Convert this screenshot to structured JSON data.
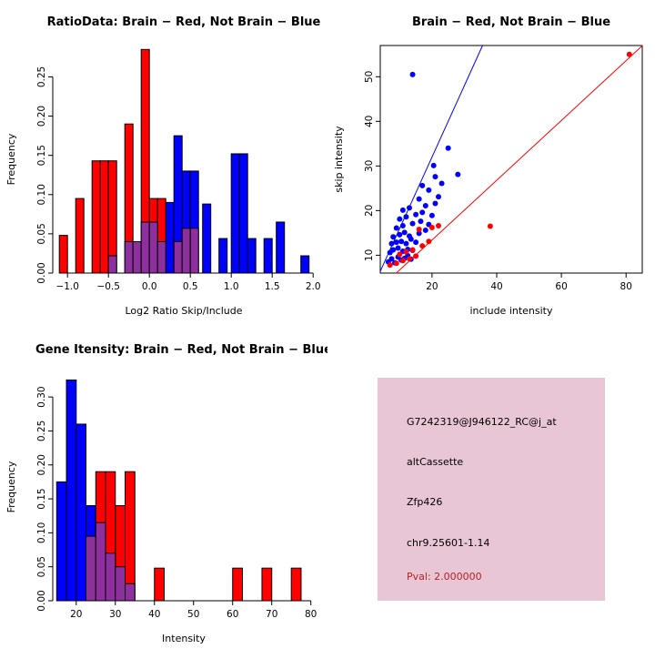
{
  "colors": {
    "red": "#FF0000",
    "blue": "#0000FF",
    "purple": "#8E2F9E",
    "axis": "#000000"
  },
  "chart_data": [
    {
      "type": "histogram",
      "panel": "top-left",
      "title": "RatioData: Brain − Red, Not Brain − Blue",
      "xlabel": "Log2 Ratio Skip/Include",
      "ylabel": "Frequency",
      "xlim": [
        -1.18,
        2.02
      ],
      "ylim": [
        0,
        0.29
      ],
      "xticks": [
        -1.0,
        -0.5,
        0.0,
        0.5,
        1.0,
        1.5,
        2.0
      ],
      "xtick_labels": [
        "−1.0",
        "−0.5",
        "0.0",
        "0.5",
        "1.0",
        "1.5",
        "2.0"
      ],
      "yticks": [
        0,
        0.05,
        0.1,
        0.15,
        0.2,
        0.25
      ],
      "ytick_labels": [
        "0.00",
        "0.05",
        "0.10",
        "0.15",
        "0.20",
        "0.25"
      ],
      "bin_width": 0.1,
      "bars": [
        {
          "x": 0.0,
          "h": 0.065,
          "c": "blue"
        },
        {
          "x": 0.1,
          "h": 0.065,
          "c": "blue"
        },
        {
          "x": 0.2,
          "h": 0.09,
          "c": "blue"
        },
        {
          "x": 0.3,
          "h": 0.175,
          "c": "blue"
        },
        {
          "x": 0.4,
          "h": 0.13,
          "c": "blue"
        },
        {
          "x": 0.5,
          "h": 0.13,
          "c": "blue"
        },
        {
          "x": 0.65,
          "h": 0.088,
          "c": "blue"
        },
        {
          "x": 0.85,
          "h": 0.044,
          "c": "blue"
        },
        {
          "x": 1.0,
          "h": 0.152,
          "c": "blue"
        },
        {
          "x": 1.1,
          "h": 0.152,
          "c": "blue"
        },
        {
          "x": 1.2,
          "h": 0.044,
          "c": "blue"
        },
        {
          "x": 1.4,
          "h": 0.044,
          "c": "blue"
        },
        {
          "x": 1.55,
          "h": 0.065,
          "c": "blue"
        },
        {
          "x": 1.85,
          "h": 0.022,
          "c": "blue"
        },
        {
          "x": -1.1,
          "h": 0.048,
          "c": "red"
        },
        {
          "x": -0.9,
          "h": 0.095,
          "c": "red"
        },
        {
          "x": -0.7,
          "h": 0.143,
          "c": "red"
        },
        {
          "x": -0.6,
          "h": 0.143,
          "c": "red"
        },
        {
          "x": -0.5,
          "h": 0.143,
          "c": "red"
        },
        {
          "x": -0.3,
          "h": 0.19,
          "c": "red"
        },
        {
          "x": -0.1,
          "h": 0.285,
          "c": "red"
        },
        {
          "x": 0.0,
          "h": 0.095,
          "c": "red"
        },
        {
          "x": 0.1,
          "h": 0.095,
          "c": "red"
        },
        {
          "x": -0.5,
          "h": 0.022,
          "c": "purple"
        },
        {
          "x": -0.3,
          "h": 0.04,
          "c": "purple"
        },
        {
          "x": -0.2,
          "h": 0.04,
          "c": "purple"
        },
        {
          "x": -0.1,
          "h": 0.065,
          "c": "purple"
        },
        {
          "x": 0.0,
          "h": 0.065,
          "c": "purple"
        },
        {
          "x": 0.1,
          "h": 0.04,
          "c": "purple"
        },
        {
          "x": 0.3,
          "h": 0.04,
          "c": "purple"
        },
        {
          "x": 0.4,
          "h": 0.057,
          "c": "purple"
        },
        {
          "x": 0.5,
          "h": 0.057,
          "c": "purple"
        }
      ]
    },
    {
      "type": "scatter",
      "panel": "top-right",
      "title": "Brain − Red, Not Brain − Blue",
      "xlabel": "include intensity",
      "ylabel": "skip intensity",
      "xlim": [
        4,
        85
      ],
      "ylim": [
        6,
        57
      ],
      "xticks": [
        20,
        40,
        60,
        80
      ],
      "xtick_labels": [
        "20",
        "40",
        "60",
        "80"
      ],
      "yticks": [
        10,
        20,
        30,
        40,
        50
      ],
      "ytick_labels": [
        "10",
        "20",
        "30",
        "40",
        "50"
      ],
      "series": [
        {
          "name": "Not Brain",
          "color": "blue",
          "points": [
            [
              6.5,
              8.5
            ],
            [
              7.5,
              9.2
            ],
            [
              8.5,
              8.3
            ],
            [
              9.5,
              9.6
            ],
            [
              10.5,
              8.9
            ],
            [
              11.5,
              9.3
            ],
            [
              12.5,
              9.9
            ],
            [
              13.5,
              9.1
            ],
            [
              7,
              10.6
            ],
            [
              8,
              11.2
            ],
            [
              9.5,
              11.6
            ],
            [
              11,
              10.9
            ],
            [
              12.5,
              11.3
            ],
            [
              14,
              11.1
            ],
            [
              7.5,
              12.6
            ],
            [
              9,
              12.9
            ],
            [
              10.5,
              13.1
            ],
            [
              12,
              12.6
            ],
            [
              13.5,
              13.6
            ],
            [
              15,
              12.9
            ],
            [
              8,
              14.1
            ],
            [
              10,
              14.6
            ],
            [
              11.5,
              15.1
            ],
            [
              13,
              14.3
            ],
            [
              16,
              14.9
            ],
            [
              18,
              15.6
            ],
            [
              9,
              16.1
            ],
            [
              11,
              16.6
            ],
            [
              14,
              17.1
            ],
            [
              16.5,
              17.6
            ],
            [
              19,
              16.9
            ],
            [
              10,
              18.1
            ],
            [
              12,
              18.6
            ],
            [
              15,
              19.1
            ],
            [
              17,
              19.6
            ],
            [
              20,
              18.9
            ],
            [
              11,
              20.1
            ],
            [
              13,
              20.6
            ],
            [
              18,
              21.1
            ],
            [
              21,
              21.6
            ],
            [
              16,
              22.6
            ],
            [
              22,
              23.1
            ],
            [
              19,
              24.6
            ],
            [
              17,
              25.6
            ],
            [
              23,
              26.1
            ],
            [
              21,
              27.6
            ],
            [
              28,
              28.1
            ],
            [
              20.5,
              30.1
            ],
            [
              25,
              34
            ],
            [
              14,
              50.5
            ]
          ]
        },
        {
          "name": "Brain",
          "color": "red",
          "points": [
            [
              7,
              7.8
            ],
            [
              9,
              8.2
            ],
            [
              11,
              8.8
            ],
            [
              13,
              9.2
            ],
            [
              15,
              9.8
            ],
            [
              10,
              10.2
            ],
            [
              12,
              10.8
            ],
            [
              14,
              11.2
            ],
            [
              17,
              12.1
            ],
            [
              19,
              13.1
            ],
            [
              16,
              15.8
            ],
            [
              20,
              16.2
            ],
            [
              22,
              16.6
            ],
            [
              38,
              16.5
            ],
            [
              81,
              55
            ]
          ]
        }
      ],
      "lines": [
        {
          "color": "blue",
          "slope": 1.6,
          "intercept": 0
        },
        {
          "color": "red",
          "slope": 0.67,
          "intercept": 0
        }
      ]
    },
    {
      "type": "histogram",
      "panel": "bottom-left",
      "title": "Gene Itensity: Brain − Red, Not Brain − Blue",
      "xlabel": "Intensity",
      "ylabel": "Frequency",
      "xlim": [
        14,
        81
      ],
      "ylim": [
        0,
        0.335
      ],
      "xticks": [
        20,
        30,
        40,
        50,
        60,
        70,
        80
      ],
      "xtick_labels": [
        "20",
        "30",
        "40",
        "50",
        "60",
        "70",
        "80"
      ],
      "yticks": [
        0,
        0.05,
        0.1,
        0.15,
        0.2,
        0.25,
        0.3
      ],
      "ytick_labels": [
        "0.00",
        "0.05",
        "0.10",
        "0.15",
        "0.20",
        "0.25",
        "0.30"
      ],
      "bin_width": 2.5,
      "bars": [
        {
          "x": 15,
          "h": 0.175,
          "c": "blue"
        },
        {
          "x": 17.5,
          "h": 0.325,
          "c": "blue"
        },
        {
          "x": 20,
          "h": 0.26,
          "c": "blue"
        },
        {
          "x": 22.5,
          "h": 0.14,
          "c": "blue"
        },
        {
          "x": 25,
          "h": 0.14,
          "c": "blue"
        },
        {
          "x": 25,
          "h": 0.19,
          "c": "red"
        },
        {
          "x": 27.5,
          "h": 0.19,
          "c": "red"
        },
        {
          "x": 30,
          "h": 0.14,
          "c": "red"
        },
        {
          "x": 32.5,
          "h": 0.19,
          "c": "red"
        },
        {
          "x": 40,
          "h": 0.048,
          "c": "red"
        },
        {
          "x": 60,
          "h": 0.048,
          "c": "red"
        },
        {
          "x": 67.5,
          "h": 0.048,
          "c": "red"
        },
        {
          "x": 75,
          "h": 0.048,
          "c": "red"
        },
        {
          "x": 22.5,
          "h": 0.095,
          "c": "purple"
        },
        {
          "x": 25,
          "h": 0.115,
          "c": "purple"
        },
        {
          "x": 27.5,
          "h": 0.07,
          "c": "purple"
        },
        {
          "x": 30,
          "h": 0.05,
          "c": "purple"
        },
        {
          "x": 32.5,
          "h": 0.025,
          "c": "purple"
        }
      ]
    },
    {
      "type": "info",
      "panel": "bottom-right",
      "bg": "#E9C6D5",
      "lines": [
        {
          "text": "G7242319@J946122_RC@j_at",
          "color": "#000000"
        },
        {
          "text": "altCassette",
          "color": "#000000"
        },
        {
          "text": "Zfp426",
          "color": "#000000"
        },
        {
          "text": "chr9.25601-1.14",
          "color": "#000000"
        },
        {
          "text": "Pval: 2.000000",
          "color": "#B22222"
        }
      ]
    }
  ]
}
